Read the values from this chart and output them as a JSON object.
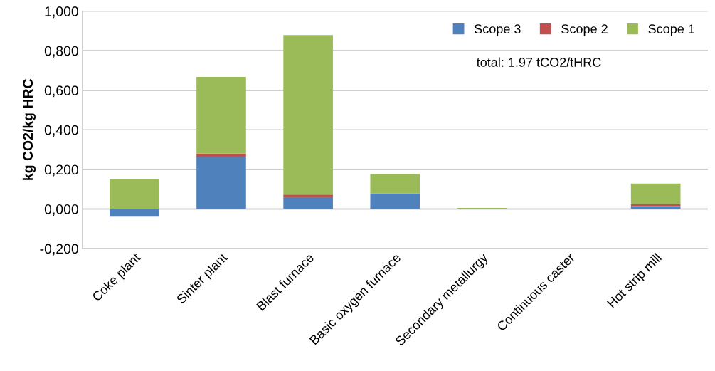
{
  "chart_data": {
    "type": "bar",
    "stacked": true,
    "ylabel": "kg CO2/kg HRC",
    "categories": [
      "Coke plant",
      "Sinter plant",
      "Blast furnace",
      "Basic oxygen furnace",
      "Secondary metallurgy",
      "Continuous caster",
      "Hot strip mill"
    ],
    "series": [
      {
        "name": "Scope 3",
        "color": "#4f81bd",
        "values": [
          -0.039,
          0.264,
          0.06,
          0.079,
          0,
          0,
          0.014
        ]
      },
      {
        "name": "Scope 2",
        "color": "#c0504d",
        "values": [
          0,
          0.016,
          0.013,
          0,
          0,
          0,
          0.01
        ]
      },
      {
        "name": "Scope 1",
        "color": "#9bbb59",
        "values": [
          0.151,
          0.388,
          0.806,
          0.098,
          0.005,
          0,
          0.105
        ]
      }
    ],
    "ylim": [
      -0.2,
      1.0
    ],
    "yticks": [
      {
        "value": -0.2,
        "label": "-0,200"
      },
      {
        "value": 0,
        "label": "0,000"
      },
      {
        "value": 0.2,
        "label": "0,200"
      },
      {
        "value": 0.4,
        "label": "0,400"
      },
      {
        "value": 0.6,
        "label": "0,600"
      },
      {
        "value": 0.8,
        "label": "0,800"
      },
      {
        "value": 1.0,
        "label": "1,000"
      }
    ],
    "grid": "y",
    "legend": "top right",
    "annotations": [
      "total: 1.97 tCO2/tHRC"
    ]
  }
}
